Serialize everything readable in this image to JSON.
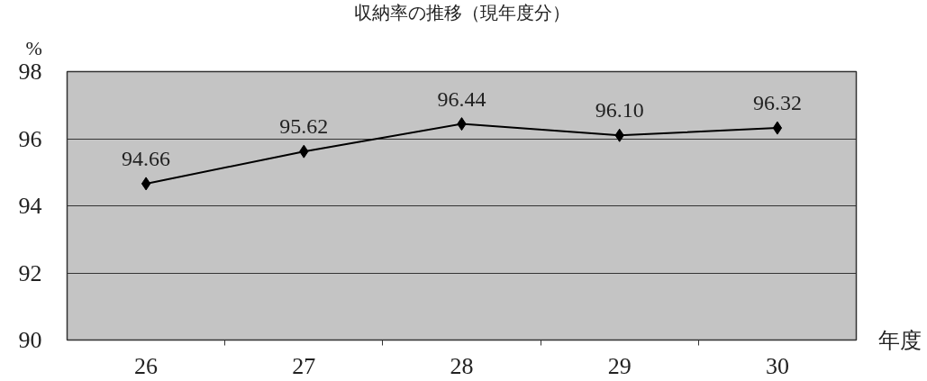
{
  "chart_data": {
    "type": "line",
    "title": "収納率の推移（現年度分）",
    "xlabel": "年度",
    "ylabel": "%",
    "categories": [
      "26",
      "27",
      "28",
      "29",
      "30"
    ],
    "series": [
      {
        "color": "#000000",
        "values": [
          94.66,
          95.62,
          96.44,
          96.1,
          96.32
        ],
        "value_labels": [
          "94.66",
          "95.62",
          "96.44",
          "96.10",
          "96.32"
        ]
      }
    ],
    "ylim": [
      90,
      98
    ],
    "yticks": [
      90,
      92,
      94,
      96,
      98
    ],
    "grid": "y",
    "marker": "diamond",
    "line_style": "solid"
  }
}
